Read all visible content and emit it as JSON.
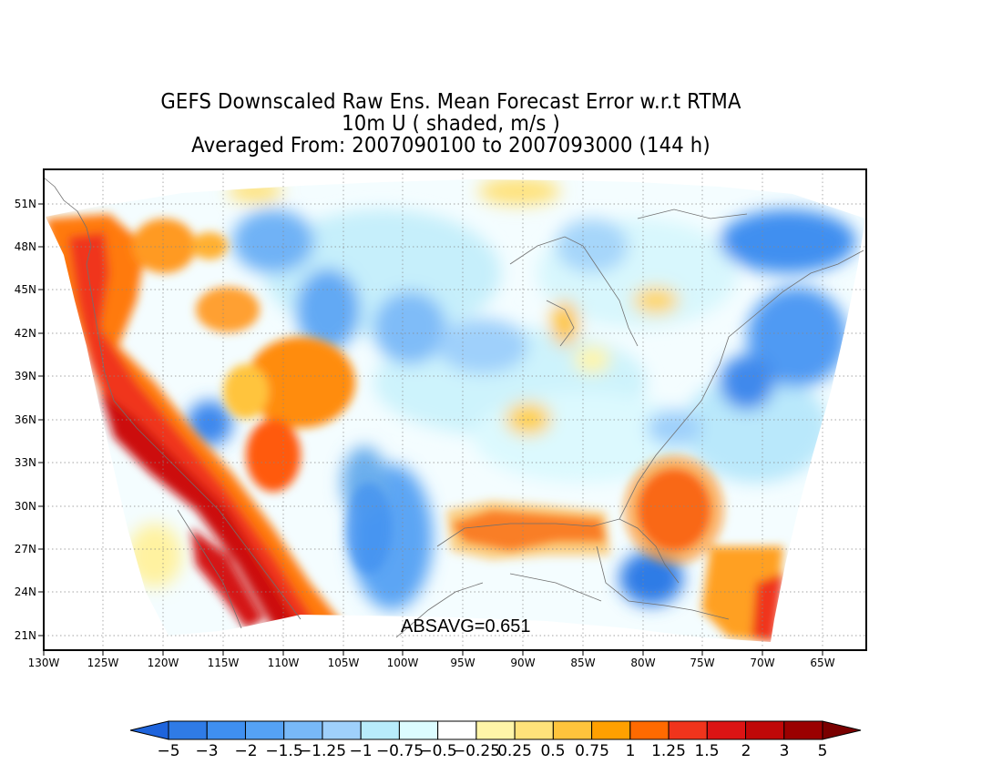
{
  "title": {
    "line1": "GEFS Downscaled Raw Ens. Mean Forecast Error w.r.t RTMA",
    "line2": "10m U ( shaded, m/s )",
    "line3": "Averaged From: 2007090100 to 2007093000 (144 h)"
  },
  "map": {
    "lat_labels": [
      "51N",
      "48N",
      "45N",
      "42N",
      "39N",
      "36N",
      "33N",
      "30N",
      "27N",
      "24N",
      "21N"
    ],
    "lon_labels": [
      "130W",
      "125W",
      "120W",
      "115W",
      "110W",
      "105W",
      "100W",
      "95W",
      "90W",
      "85W",
      "80W",
      "75W",
      "70W",
      "65W"
    ],
    "absavg": "ABSAVG=0.651"
  },
  "colorbar": {
    "labels": [
      "−5",
      "−3",
      "−2",
      "−1.5",
      "−1.25",
      "−1",
      "−0.75",
      "−0.5",
      "−0.25",
      "0.25",
      "0.5",
      "0.75",
      "1",
      "1.25",
      "1.5",
      "2",
      "3",
      "5"
    ],
    "colors": [
      "#1e64dc",
      "#2f7be6",
      "#3f8ff0",
      "#55a2f5",
      "#78b9f8",
      "#9fd0fb",
      "#b8ecfb",
      "#dcfcff",
      "#ffffff",
      "#fff5a8",
      "#ffe27a",
      "#ffc43c",
      "#ffa000",
      "#ff6a00",
      "#f0341c",
      "#dc1414",
      "#c00808",
      "#9b0000",
      "#7a0000"
    ]
  }
}
